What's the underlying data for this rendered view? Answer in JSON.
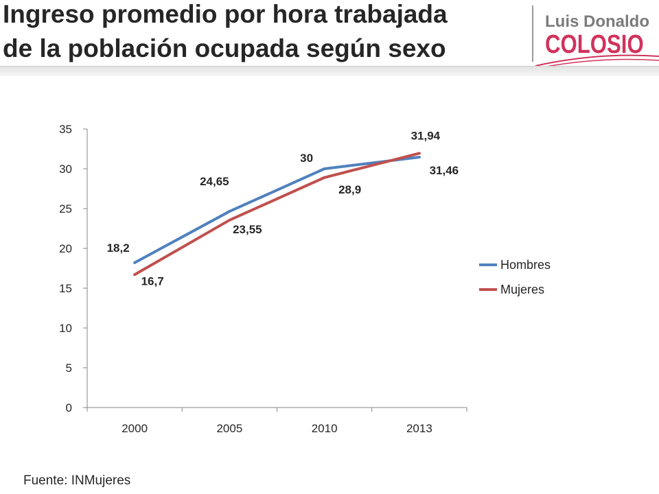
{
  "header": {
    "title_line1": "Ingreso promedio por hora trabajada",
    "title_line2": "de la población ocupada según sexo",
    "logo_line1": "Luis Donaldo",
    "logo_line2": "COLOSIO"
  },
  "footer": {
    "source": "Fuente: INMujeres"
  },
  "chart_data": {
    "type": "line",
    "title": "",
    "xlabel": "",
    "ylabel": "",
    "categories": [
      "2000",
      "2005",
      "2010",
      "2013"
    ],
    "ylim": [
      0,
      35
    ],
    "yticks": [
      0,
      5,
      10,
      15,
      20,
      25,
      30,
      35
    ],
    "ytick_labels": [
      "0",
      "5",
      "10",
      "15",
      "20",
      "25",
      "30",
      "35"
    ],
    "grid": false,
    "legend_position": "right",
    "series": [
      {
        "name": "Hombres",
        "color": "#4f81bd",
        "values": [
          18.2,
          24.65,
          30,
          31.46
        ],
        "labels": [
          "18,2",
          "24,65",
          "30",
          "31,46"
        ]
      },
      {
        "name": "Mujeres",
        "color": "#c0504d",
        "values": [
          16.7,
          23.55,
          28.9,
          31.94
        ],
        "labels": [
          "16,7",
          "23,55",
          "28,9",
          "31,94"
        ]
      }
    ]
  }
}
